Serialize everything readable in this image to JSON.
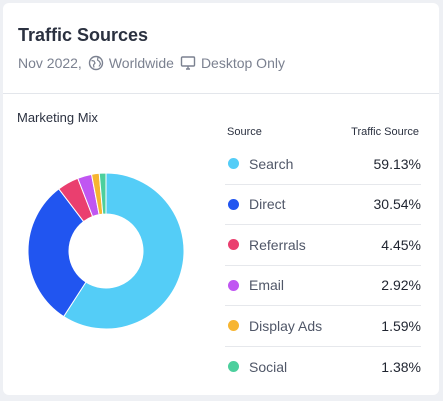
{
  "header": {
    "title": "Traffic Sources",
    "date": "Nov 2022,",
    "region": "Worldwide",
    "device": "Desktop Only"
  },
  "section_title": "Marketing Mix",
  "legend": {
    "source_header": "Source",
    "traffic_header": "Traffic Source"
  },
  "chart_data": {
    "type": "pie",
    "title": "Marketing Mix",
    "categories": [
      "Search",
      "Direct",
      "Referrals",
      "Email",
      "Display Ads",
      "Social"
    ],
    "values": [
      59.13,
      30.54,
      4.45,
      2.92,
      1.59,
      1.38
    ],
    "labels": [
      "59.13%",
      "30.54%",
      "4.45%",
      "2.92%",
      "1.59%",
      "1.38%"
    ],
    "colors": [
      "#54cdf7",
      "#2155f0",
      "#ea3f6f",
      "#c056f2",
      "#f7b531",
      "#4ccf9d"
    ],
    "donut": true,
    "legend_position": "right"
  }
}
